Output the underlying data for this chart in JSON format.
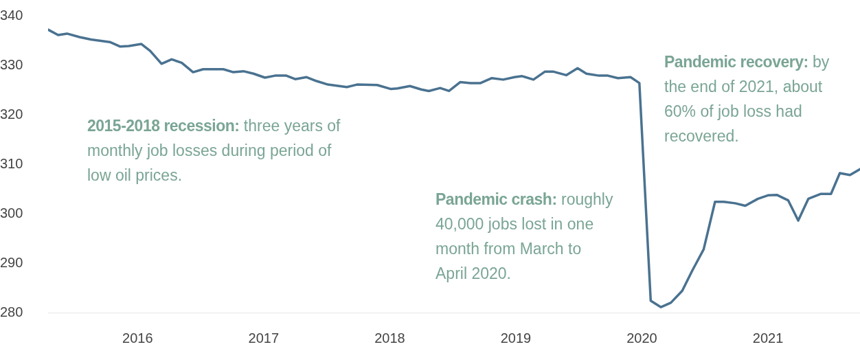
{
  "chart_data": {
    "type": "line",
    "x": [
      2015.29,
      2015.37,
      2015.44,
      2015.54,
      2015.63,
      2015.78,
      2015.86,
      2015.93,
      2016.03,
      2016.1,
      2016.19,
      2016.27,
      2016.35,
      2016.44,
      2016.52,
      2016.68,
      2016.76,
      2016.84,
      2016.92,
      2017.01,
      2017.09,
      2017.18,
      2017.25,
      2017.34,
      2017.42,
      2017.51,
      2017.66,
      2017.74,
      2017.9,
      2018.01,
      2018.06,
      2018.16,
      2018.25,
      2018.31,
      2018.4,
      2018.47,
      2018.56,
      2018.64,
      2018.72,
      2018.81,
      2018.9,
      2018.99,
      2019.05,
      2019.14,
      2019.23,
      2019.3,
      2019.4,
      2019.49,
      2019.56,
      2019.66,
      2019.73,
      2019.81,
      2019.91,
      2019.98,
      2020.07,
      2020.15,
      2020.23,
      2020.32,
      2020.4,
      2020.49,
      2020.58,
      2020.65,
      2020.74,
      2020.82,
      2020.92,
      2021.0,
      2021.07,
      2021.16,
      2021.24,
      2021.32,
      2021.42,
      2021.5,
      2021.57,
      2021.65,
      2021.73
    ],
    "series": [
      {
        "color": "#4a7290",
        "values": [
          337.2,
          336.1,
          336.4,
          335.7,
          335.2,
          334.7,
          333.8,
          333.9,
          334.3,
          332.9,
          330.3,
          331.2,
          330.5,
          328.6,
          329.2,
          329.2,
          328.6,
          328.8,
          328.3,
          327.5,
          327.9,
          327.9,
          327.2,
          327.6,
          326.8,
          326.1,
          325.6,
          326.1,
          326.0,
          325.2,
          325.3,
          325.8,
          325.1,
          324.8,
          325.4,
          324.8,
          326.6,
          326.4,
          326.4,
          327.4,
          327.1,
          327.6,
          327.8,
          327.1,
          328.7,
          328.7,
          328.0,
          329.4,
          328.3,
          327.9,
          327.9,
          327.4,
          327.6,
          326.4,
          282.4,
          281.1,
          282.0,
          284.4,
          288.5,
          292.8,
          302.4,
          302.4,
          302.1,
          301.6,
          303.0,
          303.7,
          303.8,
          302.7,
          298.6,
          303.0,
          304.0,
          304.0,
          308.2,
          307.8,
          309.0
        ]
      }
    ],
    "xlim": [
      2015.29,
      2021.73
    ],
    "xticks": [
      2016,
      2017,
      2018,
      2019,
      2020,
      2021
    ],
    "ylim": [
      280,
      340
    ],
    "yticks": [
      280,
      290,
      300,
      310,
      320,
      330,
      340
    ],
    "grid": false,
    "legend": false,
    "marker": "none",
    "line_style": "solid",
    "annotations": [
      "2015-2018 recession: three years of monthly job losses during period of low oil prices.",
      "Pandemic crash: roughly 40,000 jobs lost in one month from March to April 2020.",
      "Pandemic recovery: by the end of 2021, about 60% of job loss had recovered."
    ]
  }
}
